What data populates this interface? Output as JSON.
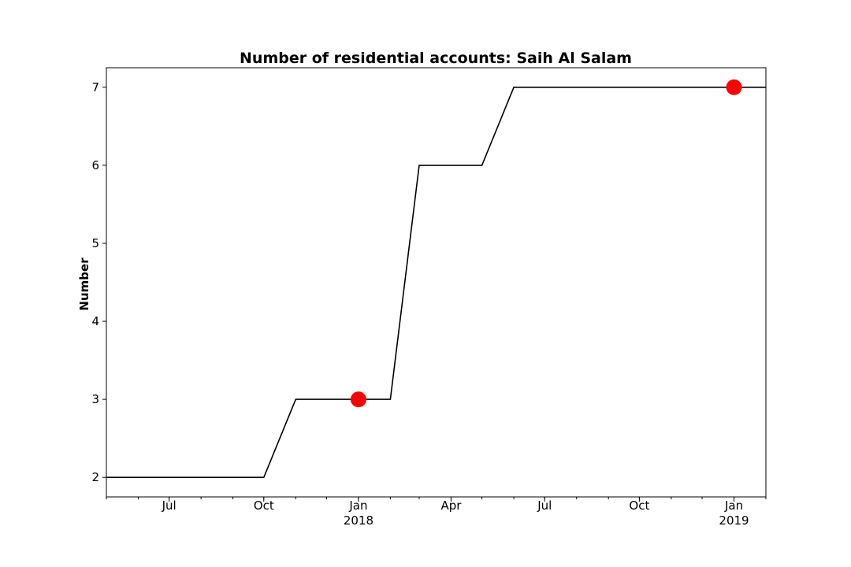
{
  "chart_data": {
    "type": "line",
    "title": "Number of residential accounts: Saih Al Salam",
    "xlabel": "",
    "ylabel": "Number",
    "xlim": [
      "2017-05-01",
      "2019-02-01"
    ],
    "ylim": [
      1.75,
      7.25
    ],
    "grid": false,
    "legend": "none",
    "line_color": "#000000",
    "marker_color": "#ff0000",
    "series": [
      {
        "x": [
          "2017-05-01",
          "2017-10-01",
          "2017-11-01",
          "2018-02-01",
          "2018-03-01",
          "2018-05-01",
          "2018-06-01",
          "2019-02-01"
        ],
        "y": [
          2,
          2,
          3,
          3,
          6,
          6,
          7,
          7
        ]
      }
    ],
    "markers": [
      {
        "x": "2018-01-01",
        "y": 3
      },
      {
        "x": "2019-01-01",
        "y": 7
      }
    ],
    "y_ticks": [
      2,
      3,
      4,
      5,
      6,
      7
    ],
    "x_major_ticks": [
      {
        "date": "2017-07-01",
        "label": "Jul",
        "sublabel": ""
      },
      {
        "date": "2017-10-01",
        "label": "Oct",
        "sublabel": ""
      },
      {
        "date": "2018-01-01",
        "label": "Jan",
        "sublabel": "2018"
      },
      {
        "date": "2018-04-01",
        "label": "Apr",
        "sublabel": ""
      },
      {
        "date": "2018-07-01",
        "label": "Jul",
        "sublabel": ""
      },
      {
        "date": "2018-10-01",
        "label": "Oct",
        "sublabel": ""
      },
      {
        "date": "2019-01-01",
        "label": "Jan",
        "sublabel": "2019"
      }
    ]
  }
}
